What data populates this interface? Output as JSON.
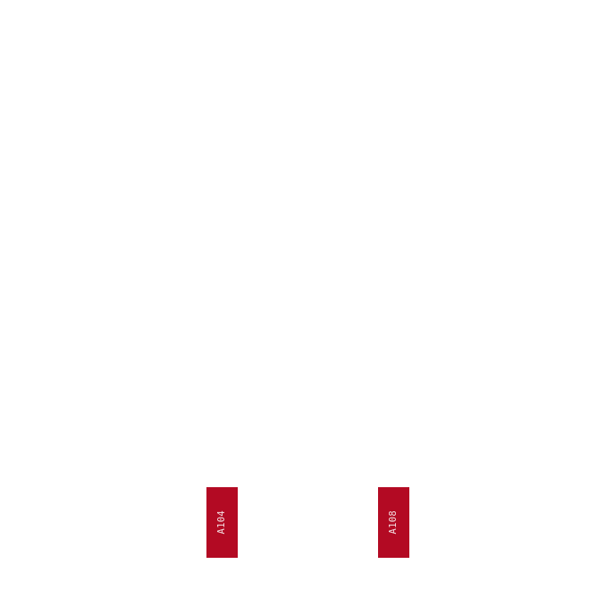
{
  "rooms": [
    {
      "label": "A104"
    },
    {
      "label": "A108"
    }
  ],
  "colors": {
    "background": "#ffffff",
    "room_fill": "#b30a23",
    "room_label": "#f3dfe2"
  }
}
